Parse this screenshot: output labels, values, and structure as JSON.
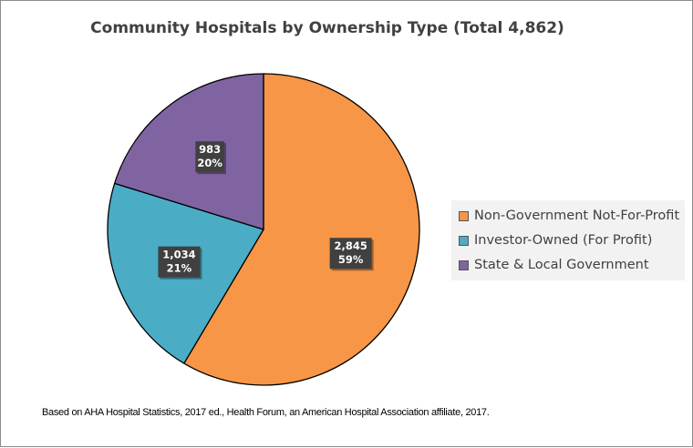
{
  "chart_data": {
    "type": "pie",
    "title": "Community Hospitals by Ownership Type (Total 4,862)",
    "slices": [
      {
        "name": "Non-Government Not-For-Profit",
        "value": 2845,
        "value_label": "2,845",
        "percent_label": "59%",
        "color": "#f79646"
      },
      {
        "name": "Investor-Owned (For Profit)",
        "value": 1034,
        "value_label": "1,034",
        "percent_label": "21%",
        "color": "#4bacc6"
      },
      {
        "name": "State & Local Government",
        "value": 983,
        "value_label": "983",
        "percent_label": "20%",
        "color": "#8064a2"
      }
    ],
    "legend_position": "right",
    "start_angle": "12 o'clock, clockwise"
  },
  "source_note": "Based on AHA Hospital Statistics, 2017 ed., Health Forum, an American Hospital Association affiliate, 2017."
}
